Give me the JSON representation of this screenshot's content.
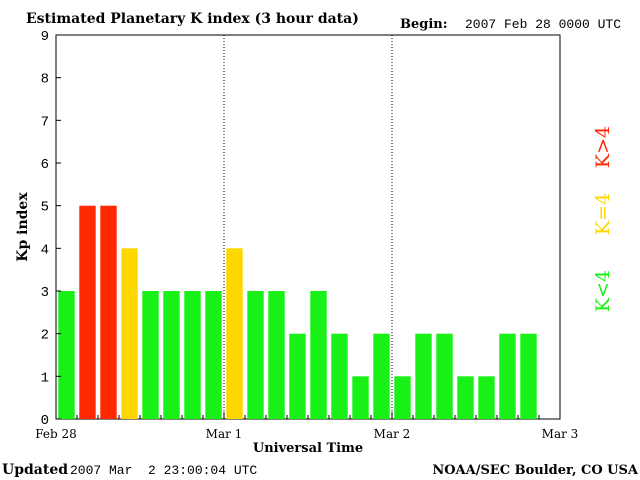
{
  "chart_data": {
    "type": "bar",
    "title": "Estimated Planetary K index (3 hour data)",
    "begin_label": "Begin:",
    "begin_value": "2007 Feb 28 0000 UTC",
    "xlabel": "Universal Time",
    "ylabel": "Kp index",
    "ylim": [
      0,
      9
    ],
    "yticks": [
      "0",
      "1",
      "2",
      "3",
      "4",
      "5",
      "6",
      "7",
      "8",
      "9"
    ],
    "xlim": [
      0,
      72
    ],
    "xticks": [
      {
        "label": "Feb 28",
        "hour": 0
      },
      {
        "label": "Mar 1",
        "hour": 24
      },
      {
        "label": "Mar 2",
        "hour": 48
      },
      {
        "label": "Mar 3",
        "hour": 72
      }
    ],
    "day_dividers_hours": [
      24,
      48
    ],
    "bar_period_hours": 3,
    "values": [
      3,
      5,
      5,
      4,
      3,
      3,
      3,
      3,
      4,
      3,
      3,
      2,
      3,
      2,
      1,
      2,
      1,
      2,
      2,
      1,
      1,
      2,
      2
    ],
    "colors": {
      "below": "#18f018",
      "equal": "#ffd700",
      "above": "#ff2800"
    },
    "legend": [
      {
        "label": "K<4",
        "color": "#18f018"
      },
      {
        "label": "K=4",
        "color": "#ffd700"
      },
      {
        "label": "K>4",
        "color": "#ff2800"
      }
    ],
    "legend_placement": "right, vertical text",
    "grid": false
  },
  "footer": {
    "updated_label": "Updated",
    "updated_value": "2007 Mar  2 23:00:04 UTC",
    "credit": "NOAA/SEC Boulder, CO USA"
  }
}
